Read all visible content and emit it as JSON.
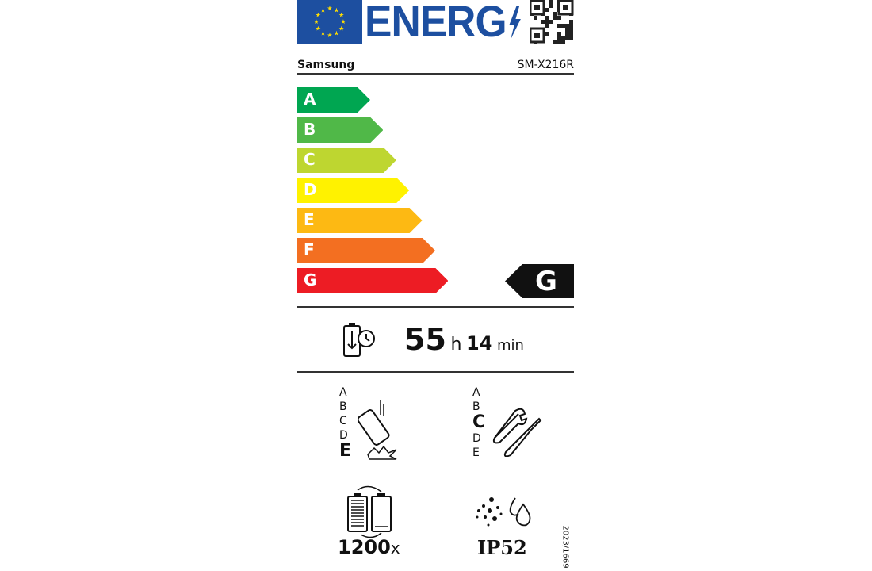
{
  "header": {
    "title": "ENERG",
    "brand": "Samsung",
    "model": "SM-X216R"
  },
  "scale": {
    "classes": [
      "A",
      "B",
      "C",
      "D",
      "E",
      "F",
      "G"
    ],
    "colors": [
      "#00a651",
      "#50b848",
      "#bed630",
      "#fff200",
      "#fdb913",
      "#f36f21",
      "#ed1c24"
    ],
    "rating": "G"
  },
  "battery": {
    "hours": "55",
    "h_unit": "h",
    "minutes": "14",
    "min_unit": "min",
    "icon": "battery-endurance-icon"
  },
  "drop": {
    "classes": [
      "A",
      "B",
      "C",
      "D",
      "E"
    ],
    "rating": "E",
    "icon": "phone-drop-icon"
  },
  "repair": {
    "classes": [
      "A",
      "B",
      "C",
      "D",
      "E"
    ],
    "rating": "C",
    "icon": "tools-icon"
  },
  "cycles": {
    "value": "1200",
    "unit": "x",
    "icon": "battery-cycles-icon"
  },
  "ip": {
    "value": "IP52",
    "icon": "dust-water-icon"
  },
  "regulation": "2023/1669"
}
